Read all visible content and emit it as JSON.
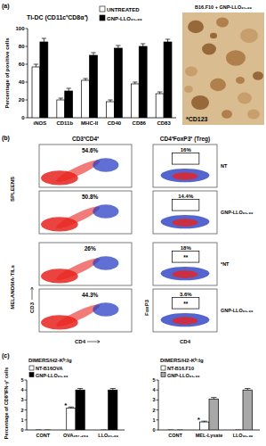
{
  "chart_data": [
    {
      "type": "bar",
      "title": "Ti-DC (CD11c⁺CD8α⁺)",
      "y_label": "Percentage of positive cells",
      "categories": [
        "iNOS",
        "CD11b",
        "MHC-II",
        "CD40",
        "CD86",
        "CD83"
      ],
      "series": [
        {
          "name": "UNTREATED",
          "color": "#ffffff",
          "values": [
            57,
            20,
            42,
            18,
            38,
            27
          ],
          "errors": [
            3,
            2,
            2,
            2,
            2,
            2
          ]
        },
        {
          "name": "GNP-LLO₉₁₋₉₉",
          "color": "#000000",
          "values": [
            85,
            30,
            70,
            78,
            80,
            85
          ],
          "errors": [
            4,
            3,
            3,
            3,
            3,
            3
          ]
        }
      ],
      "ylim": [
        0,
        100
      ],
      "yticks": [
        0,
        20,
        40,
        60,
        80,
        100
      ],
      "grid": false,
      "legend": "top"
    },
    {
      "type": "bar",
      "title": "DIMERS/H2-Kᵇ:Ig",
      "y_label": "Percentage of CD8⁺IFN-γ⁺ cells",
      "categories": [
        "CONT",
        "OVA₂₅₇₋₂₆₄",
        "LLO₉₁₋₉₉"
      ],
      "series": [
        {
          "name": "NT-B16OVA",
          "color": "#ffffff",
          "values": [
            0,
            2.2,
            0
          ],
          "errors": [
            0,
            0.1,
            0
          ],
          "significance": [
            null,
            "*",
            null
          ]
        },
        {
          "name": "GNP-LLO₉₁₋₉₉",
          "color": "#000000",
          "values": [
            0,
            4.0,
            4.0
          ],
          "errors": [
            0,
            0.15,
            0.15
          ]
        }
      ],
      "ylim": [
        0,
        5
      ],
      "yticks": [
        0,
        1,
        2,
        3,
        4,
        5
      ],
      "grid": false,
      "legend": "top"
    },
    {
      "type": "bar",
      "title": "DIMERS/H2-Kᵇ:Ig",
      "categories": [
        "CONT",
        "MEL-Lysate",
        "LLO₉₁₋₉₉"
      ],
      "series": [
        {
          "name": "NT-B16.F10",
          "color": "#ffffff",
          "values": [
            0,
            0.8,
            0
          ],
          "errors": [
            0,
            0.08,
            0
          ],
          "significance": [
            null,
            "*",
            null
          ]
        },
        {
          "name": "GNP-LLO₉₁₋₉₉",
          "color": "#a8a8a8",
          "values": [
            0,
            3.1,
            4.0
          ],
          "errors": [
            0,
            0.15,
            0.15
          ]
        }
      ],
      "ylim": [
        0,
        5
      ],
      "yticks": [
        0,
        1,
        2,
        3,
        4,
        5
      ],
      "grid": false,
      "legend": "top"
    }
  ],
  "panel_labels": [
    "(a)",
    "(b)",
    "(c)"
  ],
  "image": {
    "caption": "B16.F10 + GNP-LLO₉₁₋₉₉",
    "stain": "*CD123"
  },
  "flow": {
    "headers": [
      "CD3⁺CD4⁺",
      "CD4⁺FoxP3⁺ (Treg)"
    ],
    "axis_labels": {
      "left_y": "CD3",
      "left_x": "CD4",
      "right_y": "FoxP3",
      "right_x": "CD4"
    },
    "groups": [
      {
        "label": "SPLEENS",
        "rows": [
          {
            "condition": "NT",
            "cd3cd4": "54.6%",
            "treg": "16%"
          },
          {
            "condition": "GNP-LLO₉₁₋₉₉",
            "cd3cd4": "50.8%",
            "treg": "14.4%"
          }
        ]
      },
      {
        "label": "MELANOMA-TILs",
        "rows": [
          {
            "condition": "*NT",
            "cd3cd4": "26%",
            "treg": "18%",
            "treg_mark": "**"
          },
          {
            "condition": "GNP-LLO₉₁₋₉₉",
            "cd3cd4": "44.3%",
            "treg": "3.6%",
            "treg_mark": "**"
          }
        ]
      }
    ]
  }
}
